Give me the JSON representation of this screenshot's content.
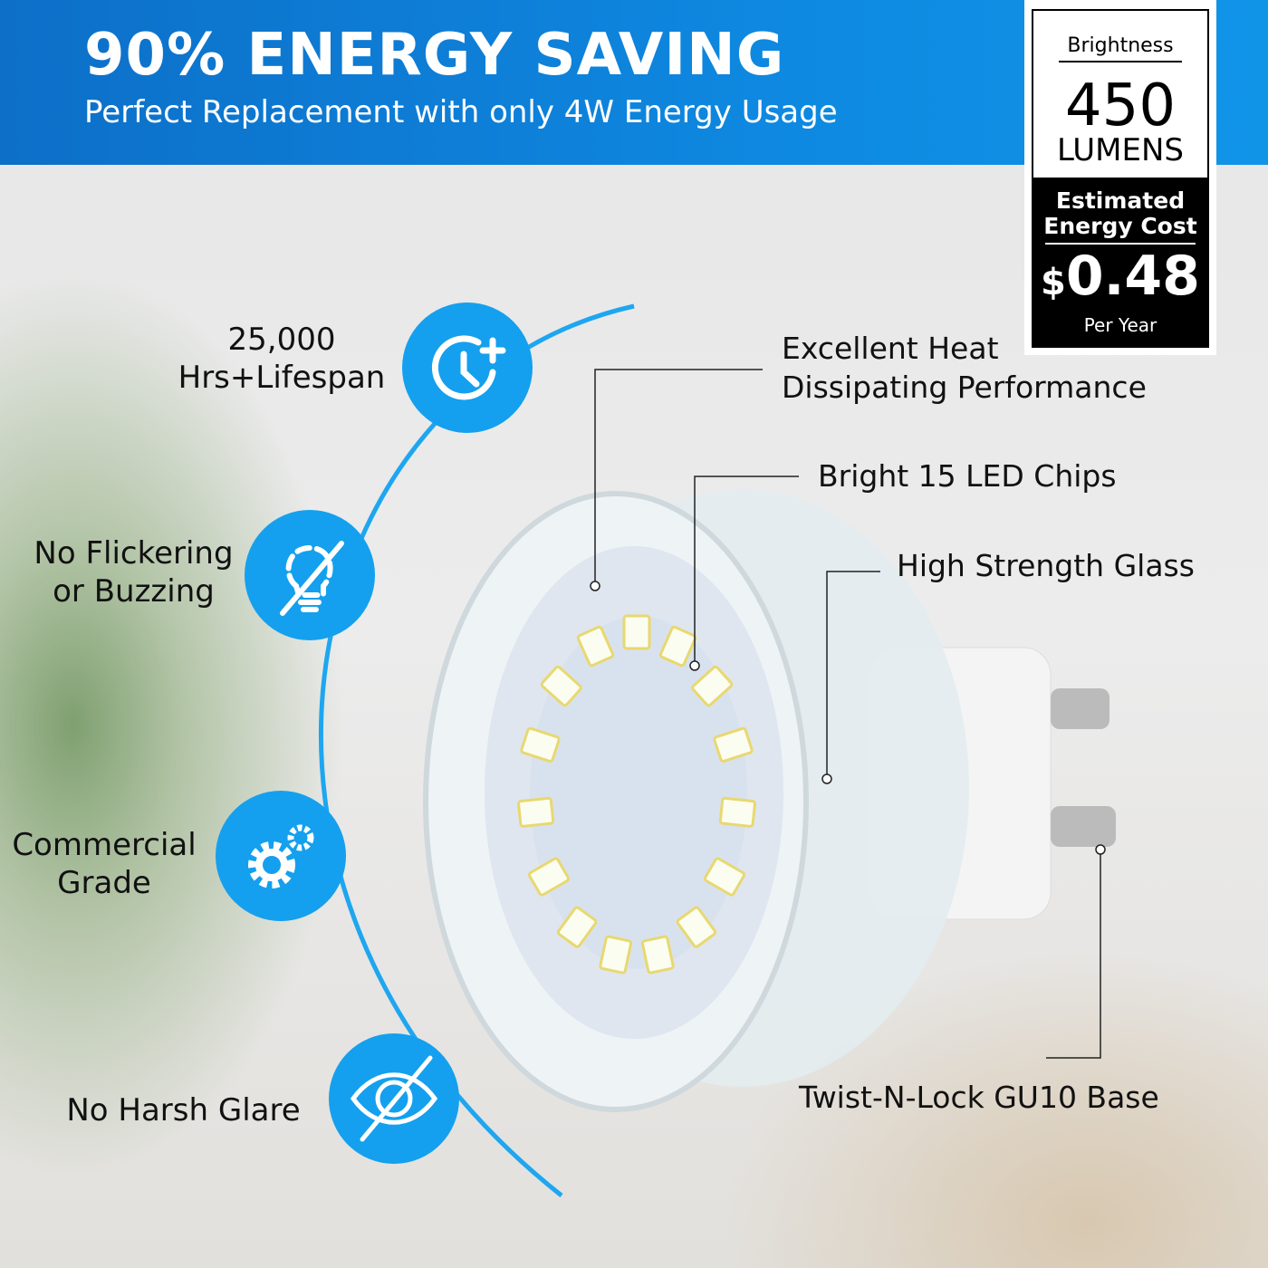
{
  "header": {
    "title": "90% ENERGY SAVING",
    "subtitle": "Perfect Replacement with only 4W Energy Usage"
  },
  "label": {
    "brightness": "Brightness",
    "lumens_value": "450",
    "lumens_unit": "LUMENS",
    "cost_title_1": "Estimated",
    "cost_title_2": "Energy Cost",
    "currency": "$",
    "cost": "0.48",
    "per": "Per Year"
  },
  "features": [
    {
      "text_1": "25,000",
      "text_2": "Hrs+Lifespan",
      "icon": "clock-plus-icon"
    },
    {
      "text_1": "No Flickering",
      "text_2": "or Buzzing",
      "icon": "bulb-off-icon"
    },
    {
      "text_1": "Commercial",
      "text_2": "Grade",
      "icon": "gears-icon"
    },
    {
      "text_1": "No Harsh Glare",
      "icon": "eye-off-icon"
    }
  ],
  "callouts": {
    "heat_1": "Excellent Heat",
    "heat_2": "Dissipating Performance",
    "chips": "Bright 15 LED Chips",
    "glass": "High Strength Glass",
    "base": "Twist-N-Lock GU10 Base"
  },
  "colors": {
    "header_blue": "#0e88e0",
    "icon_blue": "#14a0ee"
  }
}
